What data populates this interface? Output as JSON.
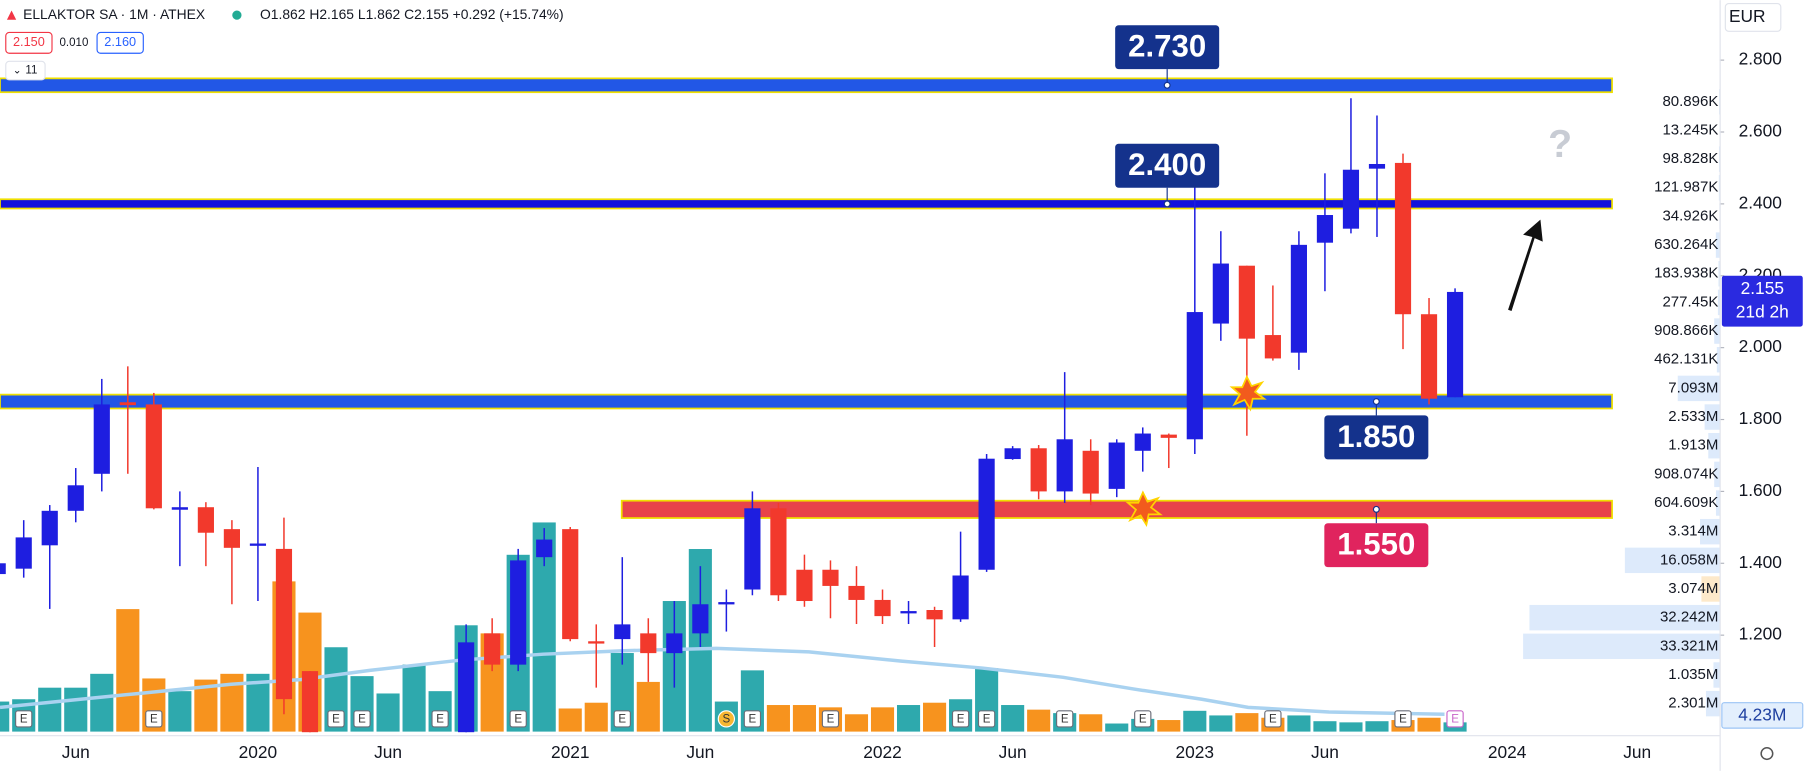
{
  "chart_data": {
    "type": "candlestick",
    "title": "ELLAKTOR SA · 1M · ATHEX",
    "ohlc_text": "O1.862 H2.165 L1.862 C2.155 +0.292 (+15.74%)",
    "quote": [
      "2.150",
      "0.010",
      "2.160"
    ],
    "indicators": "11",
    "currency": "EUR",
    "countdown": "21d 2h",
    "volume_label": "4.23M",
    "annotation": "?",
    "up_color": "#1e1ee0",
    "down_color": "#f2392c",
    "volume_up_color": "#2ea9ad",
    "volume_down_color": "#f7931e",
    "grid": false,
    "categories": [
      null,
      null,
      null,
      "Jun",
      null,
      null,
      null,
      null,
      null,
      null,
      "2020",
      null,
      null,
      null,
      null,
      "Jun",
      null,
      null,
      null,
      null,
      null,
      null,
      "2021",
      null,
      null,
      null,
      null,
      "Jun",
      null,
      null,
      null,
      null,
      null,
      null,
      "2022",
      null,
      null,
      null,
      null,
      "Jun",
      null,
      null,
      null,
      null,
      null,
      null,
      "2023",
      null,
      null,
      null,
      null,
      "Jun",
      null,
      null,
      null,
      null,
      null,
      null,
      "2024",
      null,
      null,
      null,
      null,
      "Jun"
    ],
    "open": [
      1.37,
      1.385,
      1.45,
      1.546,
      1.649,
      1.848,
      1.842,
      1.549,
      1.556,
      1.495,
      1.45,
      1.44,
      1.1,
      null,
      null,
      null,
      null,
      null,
      0.93,
      1.205,
      1.118,
      1.417,
      1.495,
      1.183,
      1.189,
      1.205,
      1.15,
      1.205,
      1.286,
      1.327,
      1.553,
      1.382,
      1.382,
      1.337,
      1.298,
      1.264,
      1.27,
      1.244,
      1.382,
      1.69,
      1.72,
      1.6,
      1.713,
      1.607,
      1.713,
      1.758,
      1.745,
      2.067,
      2.228,
      2.035,
      1.986,
      2.292,
      2.331,
      2.498,
      2.514,
      2.093,
      1.862,
      null,
      null,
      null,
      null,
      null,
      null,
      null
    ],
    "high": [
      1.41,
      1.52,
      1.562,
      1.665,
      1.913,
      1.948,
      1.874,
      1.6,
      1.57,
      1.52,
      1.668,
      1.527,
      1.1,
      null,
      null,
      null,
      null,
      null,
      1.23,
      1.247,
      1.44,
      1.498,
      1.501,
      1.23,
      1.417,
      1.247,
      1.295,
      1.392,
      1.327,
      1.6,
      1.568,
      1.424,
      1.408,
      1.392,
      1.327,
      1.295,
      1.279,
      1.488,
      1.704,
      1.726,
      1.729,
      1.932,
      1.745,
      1.745,
      1.778,
      1.761,
      2.469,
      2.324,
      2.228,
      2.173,
      2.324,
      2.485,
      2.694,
      2.646,
      2.54,
      2.138,
      2.165,
      null,
      null,
      null,
      null,
      null,
      null,
      null
    ],
    "low": [
      1.37,
      1.36,
      1.273,
      1.514,
      1.6,
      1.649,
      1.55,
      1.392,
      1.392,
      1.286,
      1.295,
      0.98,
      0.93,
      null,
      null,
      null,
      null,
      null,
      0.93,
      1.1,
      1.1,
      1.392,
      1.183,
      1.054,
      1.118,
      1.07,
      1.054,
      1.167,
      1.21,
      1.311,
      1.295,
      1.279,
      1.247,
      1.231,
      1.231,
      1.231,
      1.167,
      1.237,
      1.376,
      1.688,
      1.578,
      1.568,
      1.562,
      1.584,
      1.655,
      1.665,
      1.704,
      2.019,
      1.755,
      1.964,
      1.938,
      2.157,
      2.318,
      2.308,
      1.996,
      1.842,
      1.862,
      null,
      null,
      null,
      null,
      null,
      null,
      null
    ],
    "close": [
      1.4,
      1.472,
      1.546,
      1.617,
      1.842,
      1.84,
      1.553,
      1.556,
      1.485,
      1.443,
      1.455,
      1.022,
      0.93,
      null,
      null,
      null,
      null,
      null,
      1.18,
      1.118,
      1.408,
      1.466,
      1.189,
      1.18,
      1.23,
      1.15,
      1.205,
      1.286,
      1.292,
      1.553,
      1.311,
      1.295,
      1.337,
      1.298,
      1.253,
      1.267,
      1.244,
      1.366,
      1.691,
      1.72,
      1.6,
      1.745,
      1.594,
      1.736,
      1.761,
      1.749,
      2.099,
      2.234,
      2.025,
      1.97,
      2.286,
      2.369,
      2.495,
      2.511,
      2.093,
      1.858,
      2.155,
      null,
      null,
      null,
      null,
      null,
      null,
      null
    ],
    "volume": [
      26,
      28,
      38,
      38,
      50,
      106,
      46,
      35,
      45,
      50,
      50,
      130,
      103,
      73,
      48,
      33,
      58,
      35,
      92,
      85,
      153,
      181,
      20,
      25,
      68,
      43,
      113,
      158,
      26,
      53,
      23,
      23,
      21,
      15,
      21,
      23,
      25,
      28,
      55,
      23,
      19,
      16,
      15,
      7,
      11,
      10,
      18,
      14,
      16,
      12,
      14,
      9,
      8,
      9,
      10,
      12,
      8,
      null,
      null,
      null,
      null,
      null,
      null,
      null
    ],
    "events": [
      null,
      "E",
      null,
      null,
      null,
      null,
      "E",
      null,
      null,
      null,
      null,
      null,
      null,
      "E",
      "E",
      null,
      null,
      "E",
      null,
      null,
      "E",
      null,
      null,
      null,
      "E",
      null,
      null,
      null,
      "S",
      "E",
      null,
      null,
      "E",
      null,
      null,
      null,
      null,
      "E",
      "E",
      null,
      null,
      "E",
      null,
      null,
      "E",
      null,
      null,
      null,
      null,
      "E",
      null,
      null,
      null,
      null,
      "E",
      null,
      "E",
      null,
      null,
      null,
      null,
      null,
      null,
      null
    ],
    "ylim": [
      0.922,
      2.967
    ],
    "yticks": [
      {
        "value": 1.2,
        "label": "1.200"
      },
      {
        "value": 1.4,
        "label": "1.400"
      },
      {
        "value": 1.6,
        "label": "1.600"
      },
      {
        "value": 1.8,
        "label": "1.800"
      },
      {
        "value": 2.0,
        "label": "2.000"
      },
      {
        "value": 2.2,
        "label": "2.200"
      },
      {
        "value": 2.4,
        "label": "2.400"
      },
      {
        "value": 2.6,
        "label": "2.600"
      },
      {
        "value": 2.8,
        "label": "2.800"
      }
    ],
    "levels": [
      {
        "value": 2.73,
        "label": "2.730",
        "color": "#2257e6"
      },
      {
        "value": 2.4,
        "label": "2.400",
        "color": "#1212dc"
      },
      {
        "value": 1.85,
        "label": "1.850",
        "color": "#2257e6"
      },
      {
        "value": 1.55,
        "label": "1.550",
        "color": "#e8434a"
      }
    ],
    "volume_profile": [
      {
        "value": 80896,
        "label": "80.896K"
      },
      {
        "value": 13245,
        "label": "13.245K"
      },
      {
        "value": 98828,
        "label": "98.828K"
      },
      {
        "value": 121987,
        "label": "121.987K"
      },
      {
        "value": 34926,
        "label": "34.926K"
      },
      {
        "value": 630264,
        "label": "630.264K"
      },
      {
        "value": 183938,
        "label": "183.938K"
      },
      {
        "value": 277450,
        "label": "277.45K"
      },
      {
        "value": 908866,
        "label": "908.866K"
      },
      {
        "value": 462131,
        "label": "462.131K"
      },
      {
        "value": 7093000,
        "label": "7.093M"
      },
      {
        "value": 2533000,
        "label": "2.533M"
      },
      {
        "value": 1913000,
        "label": "1.913M"
      },
      {
        "value": 908074,
        "label": "908.074K"
      },
      {
        "value": 604609,
        "label": "604.609K"
      },
      {
        "value": 3314000,
        "label": "3.314M"
      },
      {
        "value": 16058000,
        "label": "16.058M"
      },
      {
        "value": 3074000,
        "label": "3.074M"
      },
      {
        "value": 32242000,
        "label": "32.242M"
      },
      {
        "value": 33321000,
        "label": "33.321M"
      },
      {
        "value": 1035000,
        "label": "1.035M"
      },
      {
        "value": 2301000,
        "label": "2.301M"
      }
    ]
  }
}
